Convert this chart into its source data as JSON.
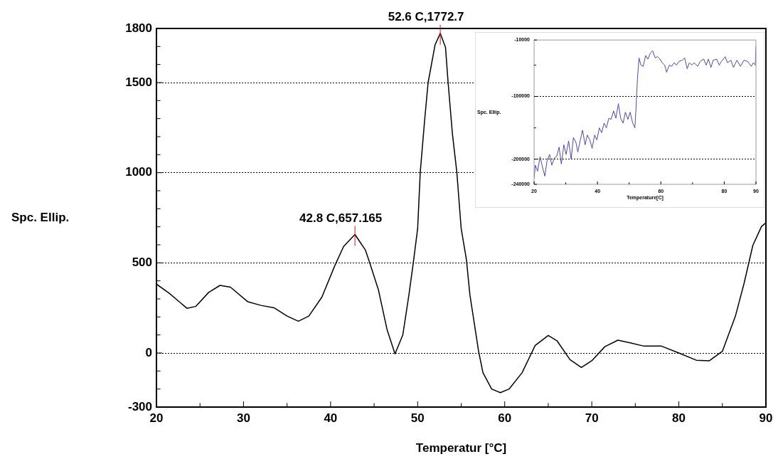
{
  "chart_data": [
    {
      "type": "line",
      "xlabel": "Temperatur [°C]",
      "ylabel": "Spc. Ellip.",
      "color": "#000000",
      "grid": "y",
      "x": [
        20,
        21.5,
        23.5,
        24.5,
        26,
        27.3,
        28.5,
        30.5,
        32,
        33.5,
        35,
        36.3,
        37.5,
        39,
        40.5,
        41.5,
        42.8,
        44,
        44.5,
        45.5,
        46.5,
        47.4,
        48.3,
        49,
        49.5,
        50,
        50.3,
        50.8,
        51.2,
        51.6,
        52,
        52.6,
        53.2,
        53.5,
        54,
        54.5,
        55,
        55.6,
        56,
        57,
        57.5,
        58.5,
        59.5,
        60.5,
        62,
        63.5,
        65,
        66,
        67.5,
        68.8,
        70,
        71.5,
        73,
        74.5,
        76,
        78,
        80,
        82,
        83.5,
        85,
        86.5,
        87.5,
        88.5,
        89.5,
        90
      ],
      "values": [
        382,
        330,
        248,
        258,
        336,
        375,
        365,
        284,
        264,
        251,
        205,
        176,
        205,
        310,
        486,
        591,
        657.165,
        571,
        499,
        349,
        127,
        -5,
        101,
        323,
        500,
        690,
        1003,
        1290,
        1499,
        1604,
        1709,
        1772.7,
        1695,
        1499,
        1212,
        1003,
        690,
        519,
        323,
        9,
        -109,
        -200,
        -220,
        -200,
        -109,
        42,
        97,
        68,
        -37,
        -80,
        -43,
        35,
        71,
        55,
        38,
        38,
        0,
        -40,
        -43,
        9,
        205,
        388,
        597,
        702,
        722
      ],
      "xlim": [
        20,
        90
      ],
      "xticks": [
        20,
        {
          "value": 25,
          "label": null
        },
        30,
        {
          "value": 35,
          "label": null
        },
        40,
        {
          "value": 45,
          "label": null
        },
        50,
        {
          "value": 55,
          "label": null
        },
        60,
        {
          "value": 65,
          "label": null
        },
        70,
        {
          "value": 75,
          "label": null
        },
        80,
        {
          "value": 85,
          "label": null
        },
        90
      ],
      "ylim": [
        -300,
        1800
      ],
      "yticks": [
        -300,
        {
          "value": -200,
          "label": null
        },
        {
          "value": -100,
          "label": null
        },
        0,
        {
          "value": 100,
          "label": null
        },
        {
          "value": 200,
          "label": null
        },
        {
          "value": 300,
          "label": null
        },
        {
          "value": 400,
          "label": null
        },
        500,
        {
          "value": 600,
          "label": null
        },
        {
          "value": 700,
          "label": null
        },
        {
          "value": 800,
          "label": null
        },
        {
          "value": 900,
          "label": null
        },
        1000,
        {
          "value": 1100,
          "label": null
        },
        {
          "value": 1200,
          "label": null
        },
        {
          "value": 1300,
          "label": null
        },
        {
          "value": 1400,
          "label": null
        },
        1500,
        {
          "value": 1600,
          "label": null
        },
        {
          "value": 1700,
          "label": null
        },
        1800
      ],
      "annotations": [
        {
          "text": "52.6 C,1772.7",
          "x": 52.6,
          "y": 1772.7
        },
        {
          "text": "42.8 C,657.165",
          "x": 42.8,
          "y": 657.165
        }
      ]
    },
    {
      "type": "line",
      "xlabel": "Temperature[C]",
      "ylabel": "Spc. Ellip.",
      "color": "#4b4ba0",
      "grid": "y",
      "x": [
        20,
        20.4,
        21.1,
        21.9,
        22.6,
        23.4,
        24.1,
        24.9,
        25.6,
        26.4,
        27.1,
        27.9,
        28.6,
        29.4,
        30.1,
        30.9,
        31.7,
        32.4,
        33.2,
        33.8,
        34.6,
        35.3,
        36.1,
        36.8,
        37.6,
        38.3,
        39.1,
        39.8,
        40.6,
        41.3,
        42.1,
        42.8,
        43.6,
        44.3,
        45.1,
        45.8,
        46.6,
        47.3,
        48.1,
        48.8,
        49.6,
        50.3,
        51.1,
        51.8,
        52.2,
        52.6,
        53.1,
        53.7,
        54.4,
        55.2,
        55.9,
        56.7,
        57.4,
        58.2,
        58.9,
        59.7,
        60.4,
        61.2,
        61.8,
        62.7,
        63.4,
        64.2,
        64.9,
        65.7,
        66.8,
        67.5,
        68.3,
        69,
        69.8,
        70.5,
        71.6,
        72.4,
        73.5,
        74.3,
        75,
        75.8,
        76.5,
        77.6,
        78.4,
        79.1,
        80.3,
        81,
        82.1,
        82.9,
        84,
        85.1,
        86.2,
        87.4,
        88.5,
        89.2,
        89.8,
        90
      ],
      "values": [
        -230800,
        -209600,
        -219000,
        -196000,
        -211500,
        -227000,
        -202000,
        -192300,
        -209600,
        -198000,
        -196000,
        -180800,
        -207700,
        -177000,
        -192300,
        -171000,
        -200000,
        -165400,
        -173000,
        -188500,
        -169200,
        -153800,
        -177000,
        -161500,
        -169200,
        -182700,
        -161500,
        -169200,
        -150000,
        -157700,
        -142300,
        -150000,
        -134600,
        -136500,
        -123000,
        -134600,
        -111500,
        -134600,
        -142300,
        -125000,
        -136500,
        -125000,
        -142300,
        -150000,
        -115400,
        -73000,
        -38500,
        -50000,
        -52000,
        -34600,
        -40400,
        -30800,
        -27000,
        -38500,
        -36500,
        -40400,
        -46200,
        -50000,
        -61500,
        -50000,
        -52000,
        -46200,
        -50000,
        -44200,
        -42300,
        -38500,
        -55800,
        -46200,
        -50000,
        -46200,
        -52000,
        -44200,
        -40400,
        -50000,
        -40400,
        -53800,
        -42300,
        -40400,
        -50000,
        -44200,
        -36500,
        -46200,
        -42300,
        -53800,
        -42300,
        -52000,
        -42300,
        -44200,
        -52000,
        -46200,
        -50000,
        -19200
      ],
      "xlim": [
        20,
        90
      ],
      "xticks": [
        20,
        {
          "value": 30,
          "label": null
        },
        40,
        {
          "value": 50,
          "label": null
        },
        60,
        {
          "value": 70,
          "label": null
        },
        80,
        90
      ],
      "ylim": [
        -240000,
        -10000
      ],
      "yticks": [
        -240000,
        -200000,
        {
          "value": -150000,
          "label": null
        },
        -100000,
        {
          "value": -50000,
          "label": null
        },
        -10000
      ]
    }
  ]
}
